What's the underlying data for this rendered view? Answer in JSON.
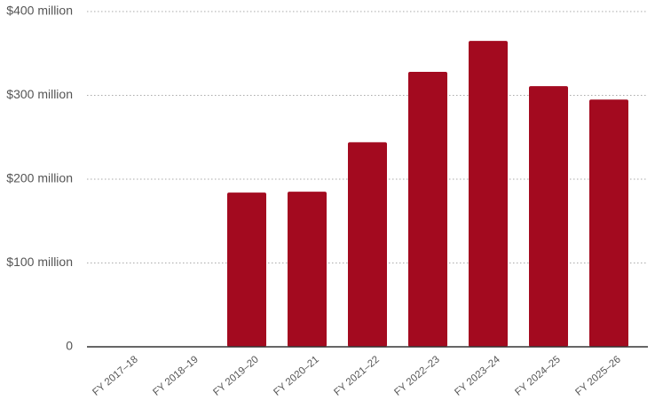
{
  "chart_data": {
    "type": "bar",
    "categories": [
      "FY 2017–18",
      "FY 2018–19",
      "FY 2019–20",
      "FY 2020–21",
      "FY 2021–22",
      "FY 2022–23",
      "FY 2023–24",
      "FY 2024–25",
      "FY 2025–26"
    ],
    "values": [
      null,
      null,
      184,
      185,
      244,
      328,
      365,
      311,
      295
    ],
    "color": "#a30a1f",
    "ylim": [
      0,
      400
    ],
    "yticks": [
      0,
      {
        "value": 100,
        "label": "$100 million"
      },
      {
        "value": 200,
        "label": "$200 million"
      },
      {
        "value": 300,
        "label": "$300 million"
      },
      {
        "value": 400,
        "label": "$400 million"
      }
    ],
    "grid": true
  }
}
